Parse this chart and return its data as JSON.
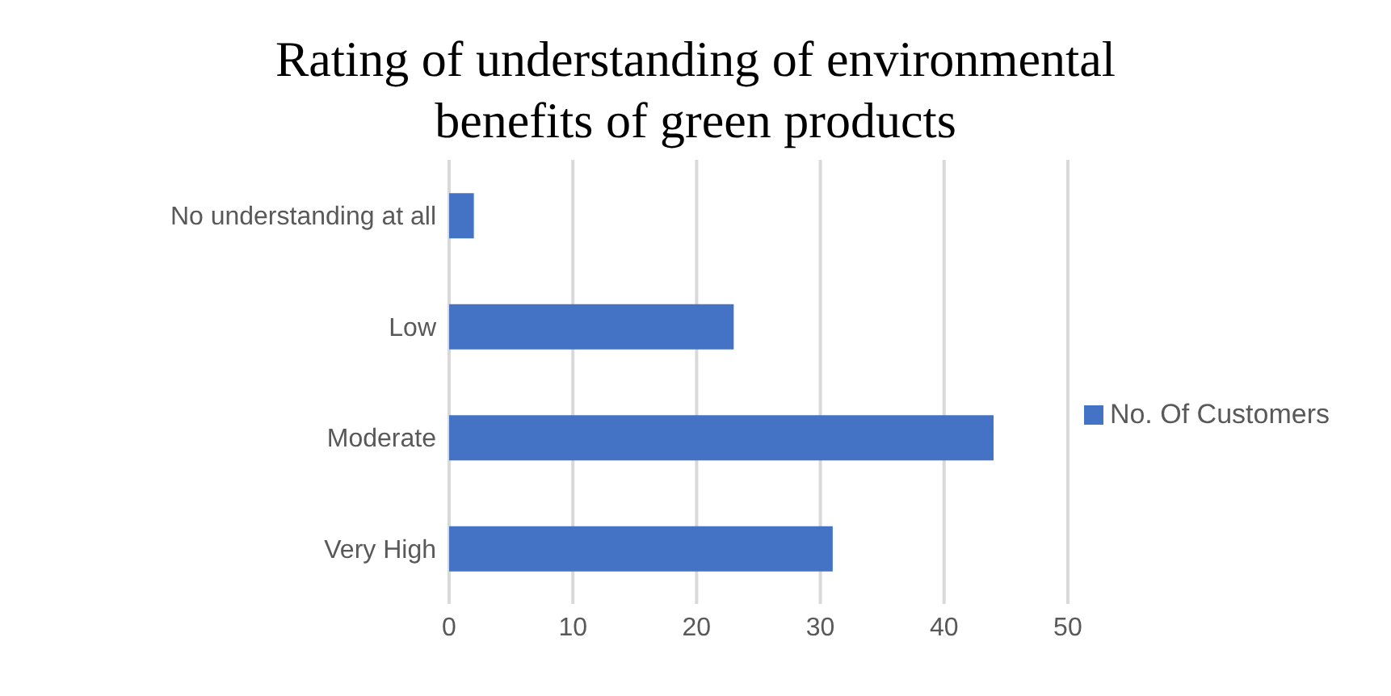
{
  "chart_data": {
    "type": "bar",
    "orientation": "horizontal",
    "title": "Rating of understanding of environmental benefits of green products",
    "categories": [
      "No understanding at all",
      "Low",
      "Moderate",
      "Very High"
    ],
    "series": [
      {
        "name": "No. Of Customers",
        "color": "#4472c4",
        "values": [
          2,
          23,
          44,
          31
        ]
      }
    ],
    "xlim": [
      0,
      50
    ],
    "xticks": [
      0,
      10,
      20,
      30,
      40,
      50
    ],
    "grid": "x",
    "legend": "right"
  }
}
